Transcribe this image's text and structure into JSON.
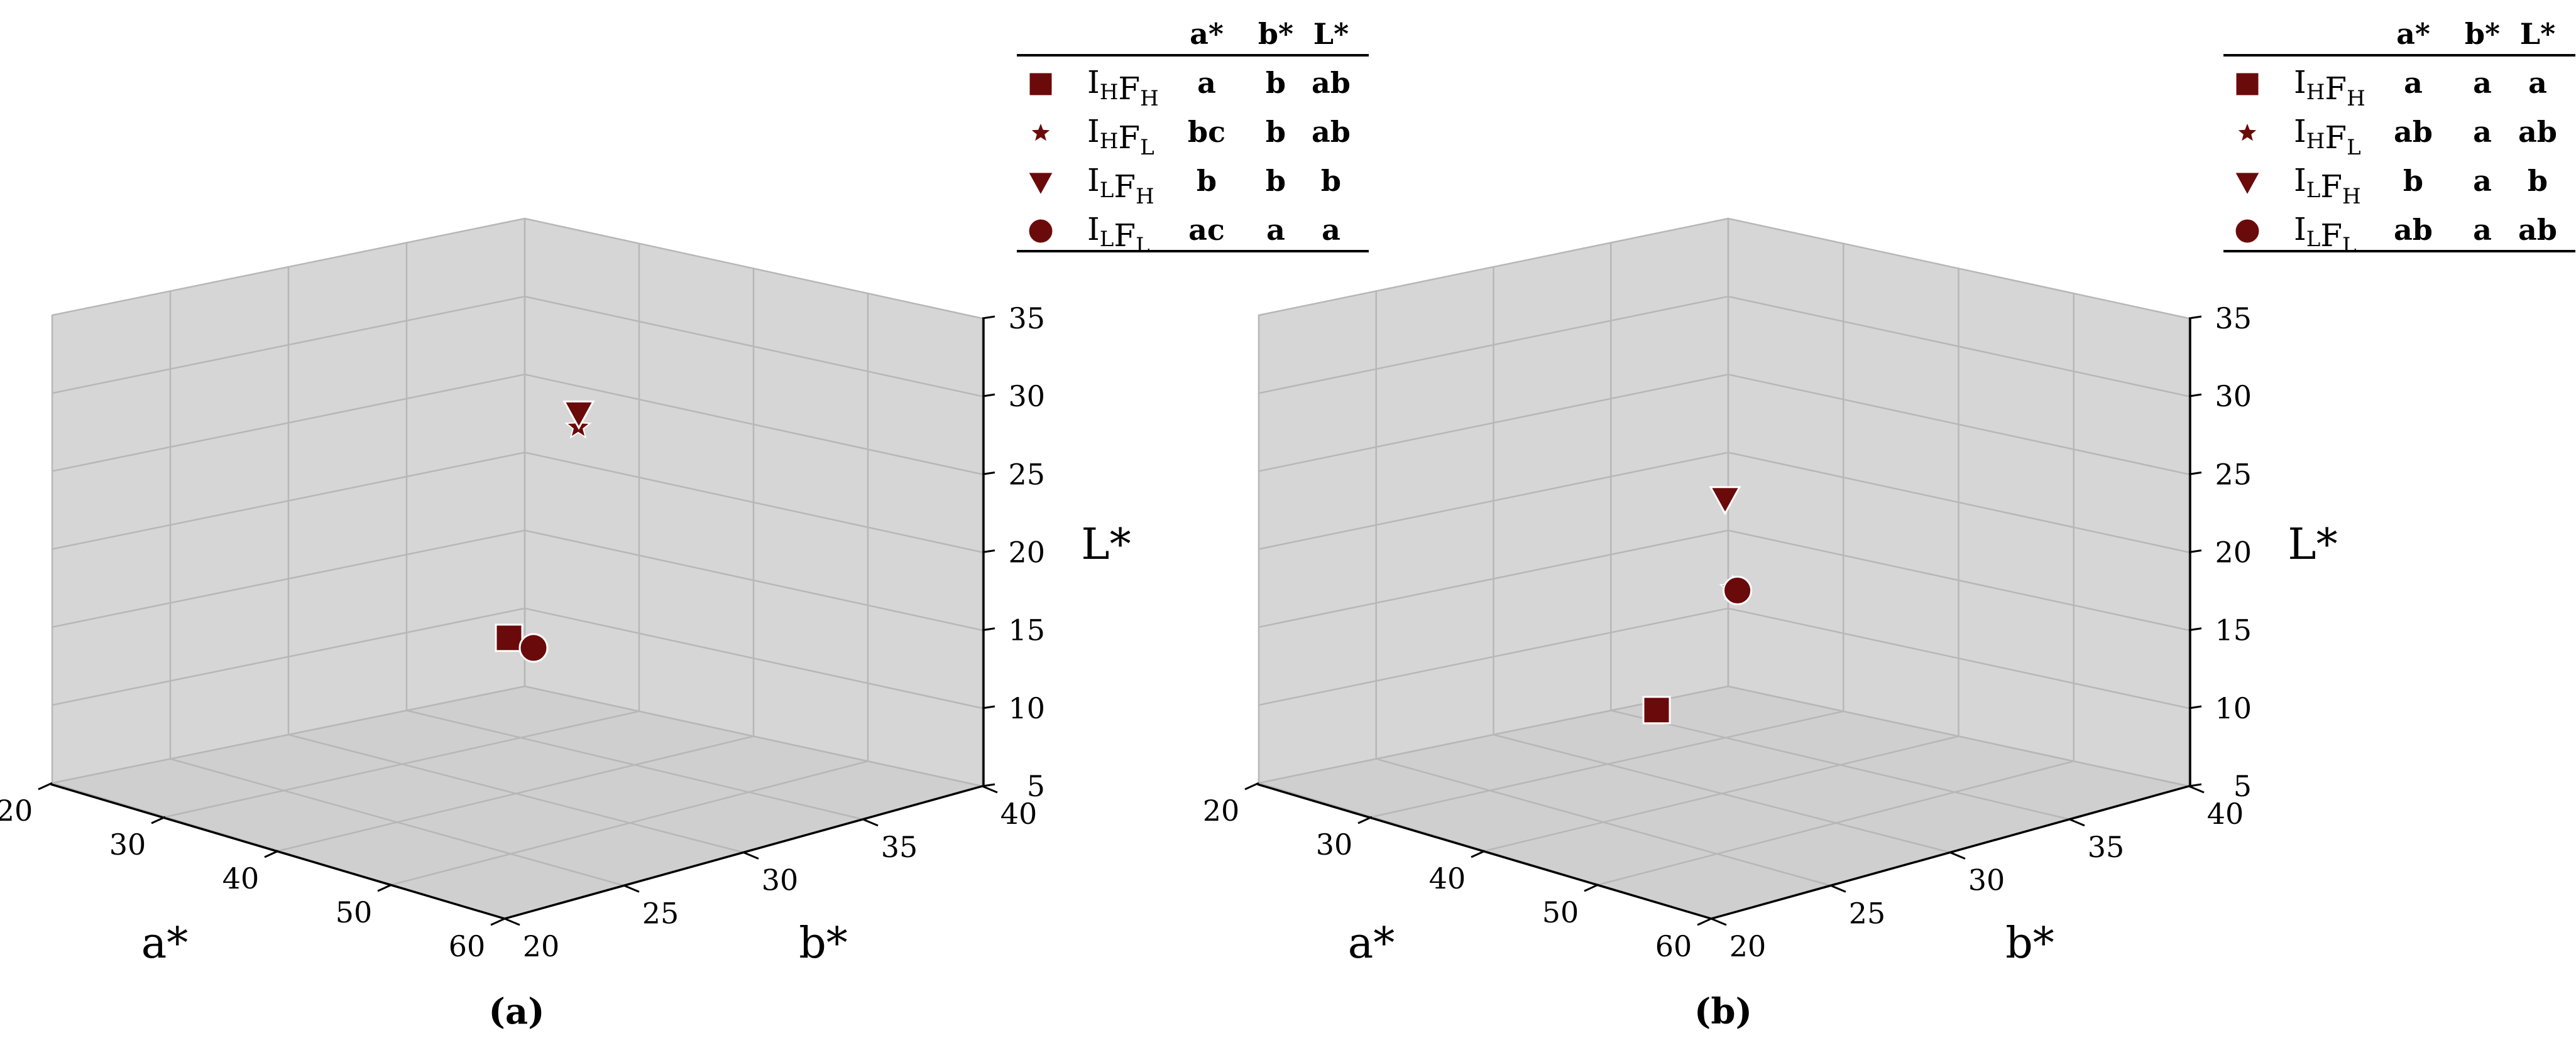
{
  "chart_data": [
    {
      "type": "scatter",
      "panel_label": "(a)",
      "xlabel": "a*",
      "ylabel": "b*",
      "zlabel": "L*",
      "xlim": [
        20,
        60
      ],
      "ylim": [
        20,
        40
      ],
      "zlim": [
        5,
        35
      ],
      "xticks": [
        "20",
        "30",
        "40",
        "50",
        "60"
      ],
      "yticks": [
        "20",
        "25",
        "30",
        "35",
        "40"
      ],
      "zticks": [
        "5",
        "10",
        "15",
        "20",
        "25",
        "30",
        "35"
      ],
      "grid": true,
      "legend_position": "top-right",
      "legend_columns": [
        "a*",
        "b*",
        "L*"
      ],
      "series": [
        {
          "marker": "square",
          "name_main": [
            "I",
            "F"
          ],
          "name_subs": [
            "H",
            "H"
          ],
          "letters": [
            "a",
            "b",
            "ab"
          ],
          "x": 53.0,
          "y": 23.5,
          "z": 20.0
        },
        {
          "marker": "star",
          "name_main": [
            "I",
            "F"
          ],
          "name_subs": [
            "H",
            "L"
          ],
          "letters": [
            "bc",
            "b",
            "ab"
          ],
          "x": 38.0,
          "y": 33.5,
          "z": 26.0
        },
        {
          "marker": "triangle",
          "name_main": [
            "I",
            "F"
          ],
          "name_subs": [
            "L",
            "H"
          ],
          "letters": [
            "b",
            "b",
            "b"
          ],
          "x": 37.0,
          "y": 34.0,
          "z": 26.5
        },
        {
          "marker": "circle",
          "name_main": [
            "I",
            "F"
          ],
          "name_subs": [
            "L",
            "L"
          ],
          "letters": [
            "ac",
            "a",
            "a"
          ],
          "x": 52.0,
          "y": 25.0,
          "z": 18.5
        }
      ]
    },
    {
      "type": "scatter",
      "panel_label": "(b)",
      "xlabel": "a*",
      "ylabel": "b*",
      "zlabel": "L*",
      "xlim": [
        20,
        60
      ],
      "ylim": [
        20,
        40
      ],
      "zlim": [
        5,
        35
      ],
      "xticks": [
        "20",
        "30",
        "40",
        "50",
        "60"
      ],
      "yticks": [
        "20",
        "25",
        "30",
        "35",
        "40"
      ],
      "zticks": [
        "5",
        "10",
        "15",
        "20",
        "25",
        "30",
        "35"
      ],
      "grid": true,
      "legend_position": "top-right",
      "legend_columns": [
        "a*",
        "b*",
        "L*"
      ],
      "series": [
        {
          "marker": "square",
          "name_main": [
            "I",
            "F"
          ],
          "name_subs": [
            "H",
            "H"
          ],
          "letters": [
            "a",
            "a",
            "a"
          ],
          "x": 52.0,
          "y": 21.5,
          "z": 16.0
        },
        {
          "marker": "star",
          "name_main": [
            "I",
            "F"
          ],
          "name_subs": [
            "H",
            "L"
          ],
          "letters": [
            "ab",
            "a",
            "ab"
          ],
          "x": 45.0,
          "y": 28.0,
          "z": 19.5
        },
        {
          "marker": "triangle",
          "name_main": [
            "I",
            "F"
          ],
          "name_subs": [
            "L",
            "H"
          ],
          "letters": [
            "b",
            "a",
            "b"
          ],
          "x": 38.0,
          "y": 31.0,
          "z": 22.5
        },
        {
          "marker": "circle",
          "name_main": [
            "I",
            "F"
          ],
          "name_subs": [
            "L",
            "L"
          ],
          "letters": [
            "ab",
            "a",
            "ab"
          ],
          "x": 45.0,
          "y": 28.2,
          "z": 19.3
        }
      ]
    }
  ],
  "colors": {
    "marker": "#6b0a0a",
    "pane": "#d6d6d6",
    "pane_floor": "#cfcfcf",
    "grid": "#b7b7b7"
  }
}
